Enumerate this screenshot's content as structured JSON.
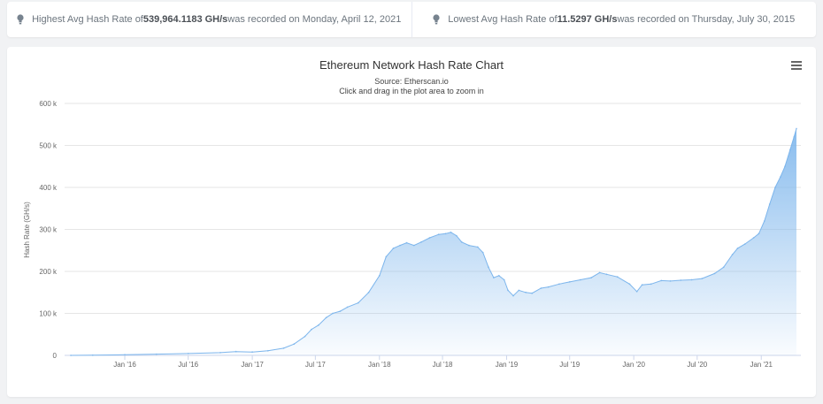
{
  "stats": {
    "highest": {
      "prefix": "Highest Avg Hash Rate of ",
      "value": "539,964.1183 GH/s",
      "suffix": " was recorded on Monday, April 12, 2021"
    },
    "lowest": {
      "prefix": "Lowest Avg Hash Rate of ",
      "value": "11.5297 GH/s",
      "suffix": " was recorded on Thursday, July 30, 2015"
    },
    "icon": "lightbulb-icon"
  },
  "menu": {
    "icon": "hamburger-menu-icon"
  },
  "colors": {
    "line": "#7cb5ec",
    "fill_top": "#7cb5ec",
    "fill_bottom": "#ffffff",
    "grid": "#e6e6e6"
  },
  "chart_data": {
    "type": "area",
    "title": "Ethereum Network Hash Rate Chart",
    "subtitle": [
      "Source: Etherscan.io",
      "Click and drag in the plot area to zoom in"
    ],
    "ylabel": "Hash Rate (GH/s)",
    "xlabel": "",
    "ylim": [
      0,
      600000
    ],
    "yticks": [
      {
        "value": 0,
        "label": "0"
      },
      {
        "value": 100000,
        "label": "100 k"
      },
      {
        "value": 200000,
        "label": "200 k"
      },
      {
        "value": 300000,
        "label": "300 k"
      },
      {
        "value": 400000,
        "label": "400 k"
      },
      {
        "value": 500000,
        "label": "500 k"
      },
      {
        "value": 600000,
        "label": "600 k"
      }
    ],
    "xlim": [
      "2015-07-30",
      "2021-04-12"
    ],
    "xticks": [
      {
        "date": "2016-01-01",
        "label": "Jan '16"
      },
      {
        "date": "2016-07-01",
        "label": "Jul '16"
      },
      {
        "date": "2017-01-01",
        "label": "Jan '17"
      },
      {
        "date": "2017-07-01",
        "label": "Jul '17"
      },
      {
        "date": "2018-01-01",
        "label": "Jan '18"
      },
      {
        "date": "2018-07-01",
        "label": "Jul '18"
      },
      {
        "date": "2019-01-01",
        "label": "Jan '19"
      },
      {
        "date": "2019-07-01",
        "label": "Jul '19"
      },
      {
        "date": "2020-01-01",
        "label": "Jan '20"
      },
      {
        "date": "2020-07-01",
        "label": "Jul '20"
      },
      {
        "date": "2021-01-01",
        "label": "Jan '21"
      }
    ],
    "grid": true,
    "legend": "none",
    "series": [
      {
        "points": [
          [
            "2015-07-30",
            11.5297
          ],
          [
            "2015-10-01",
            500
          ],
          [
            "2016-01-01",
            1500
          ],
          [
            "2016-04-01",
            3000
          ],
          [
            "2016-07-01",
            4500
          ],
          [
            "2016-10-01",
            6500
          ],
          [
            "2016-11-15",
            9000
          ],
          [
            "2017-01-01",
            8000
          ],
          [
            "2017-02-15",
            11000
          ],
          [
            "2017-04-01",
            17000
          ],
          [
            "2017-05-01",
            27000
          ],
          [
            "2017-06-01",
            45000
          ],
          [
            "2017-06-20",
            62000
          ],
          [
            "2017-07-10",
            72000
          ],
          [
            "2017-08-01",
            90000
          ],
          [
            "2017-08-20",
            100000
          ],
          [
            "2017-09-10",
            105000
          ],
          [
            "2017-10-01",
            115000
          ],
          [
            "2017-11-01",
            125000
          ],
          [
            "2017-12-01",
            150000
          ],
          [
            "2018-01-01",
            190000
          ],
          [
            "2018-01-20",
            235000
          ],
          [
            "2018-02-10",
            255000
          ],
          [
            "2018-03-01",
            262000
          ],
          [
            "2018-03-20",
            268000
          ],
          [
            "2018-04-10",
            262000
          ],
          [
            "2018-05-01",
            270000
          ],
          [
            "2018-05-25",
            280000
          ],
          [
            "2018-06-20",
            288000
          ],
          [
            "2018-07-10",
            290000
          ],
          [
            "2018-07-25",
            293000
          ],
          [
            "2018-08-10",
            285000
          ],
          [
            "2018-08-25",
            270000
          ],
          [
            "2018-09-15",
            262000
          ],
          [
            "2018-10-10",
            258000
          ],
          [
            "2018-10-25",
            245000
          ],
          [
            "2018-11-10",
            210000
          ],
          [
            "2018-11-25",
            185000
          ],
          [
            "2018-12-10",
            190000
          ],
          [
            "2018-12-25",
            180000
          ],
          [
            "2019-01-05",
            155000
          ],
          [
            "2019-01-20",
            142000
          ],
          [
            "2019-02-05",
            155000
          ],
          [
            "2019-02-25",
            150000
          ],
          [
            "2019-03-15",
            148000
          ],
          [
            "2019-04-10",
            160000
          ],
          [
            "2019-05-01",
            163000
          ],
          [
            "2019-06-01",
            170000
          ],
          [
            "2019-07-01",
            175000
          ],
          [
            "2019-08-01",
            180000
          ],
          [
            "2019-09-01",
            185000
          ],
          [
            "2019-09-25",
            197000
          ],
          [
            "2019-10-15",
            193000
          ],
          [
            "2019-11-15",
            187000
          ],
          [
            "2019-12-20",
            170000
          ],
          [
            "2020-01-10",
            152000
          ],
          [
            "2020-01-25",
            168000
          ],
          [
            "2020-02-20",
            170000
          ],
          [
            "2020-03-20",
            178000
          ],
          [
            "2020-04-15",
            177000
          ],
          [
            "2020-05-15",
            179000
          ],
          [
            "2020-06-15",
            180000
          ],
          [
            "2020-07-15",
            183000
          ],
          [
            "2020-08-20",
            195000
          ],
          [
            "2020-09-15",
            210000
          ],
          [
            "2020-10-10",
            240000
          ],
          [
            "2020-10-25",
            255000
          ],
          [
            "2020-11-15",
            265000
          ],
          [
            "2020-12-10",
            280000
          ],
          [
            "2020-12-25",
            290000
          ],
          [
            "2021-01-10",
            320000
          ],
          [
            "2021-01-25",
            360000
          ],
          [
            "2021-02-10",
            400000
          ],
          [
            "2021-02-25",
            425000
          ],
          [
            "2021-03-10",
            450000
          ],
          [
            "2021-03-25",
            490000
          ],
          [
            "2021-04-05",
            520000
          ],
          [
            "2021-04-12",
            539964.1183
          ]
        ]
      }
    ]
  }
}
